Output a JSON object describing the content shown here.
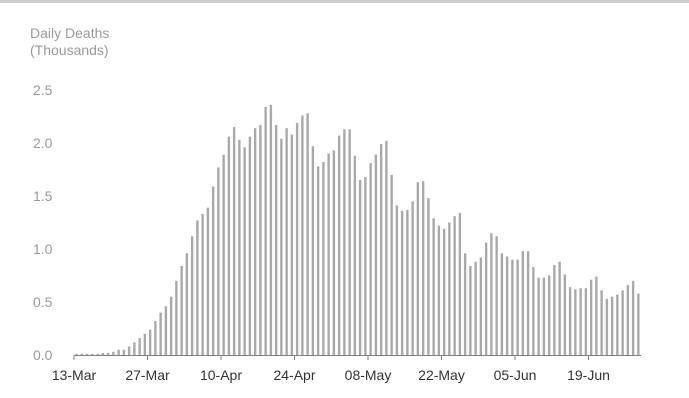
{
  "chart_data": {
    "type": "bar",
    "title": "",
    "ylabel_line1": "Daily Deaths",
    "ylabel_line2": "(Thousands)",
    "xlabel": "",
    "ylim": [
      0,
      2.5
    ],
    "yticks": [
      "0.0",
      "0.5",
      "1.0",
      "1.5",
      "2.0",
      "2.5"
    ],
    "xticks": [
      "13-Mar",
      "27-Mar",
      "10-Apr",
      "24-Apr",
      "08-May",
      "22-May",
      "05-Jun",
      "19-Jun"
    ],
    "start_label": "13-Mar",
    "bar_color": "#a9a9a9",
    "axis_color": "#808080",
    "values": [
      0.01,
      0.01,
      0.01,
      0.01,
      0.01,
      0.02,
      0.02,
      0.03,
      0.05,
      0.05,
      0.08,
      0.12,
      0.16,
      0.2,
      0.24,
      0.32,
      0.4,
      0.46,
      0.55,
      0.7,
      0.84,
      0.96,
      1.12,
      1.27,
      1.33,
      1.39,
      1.59,
      1.77,
      1.89,
      2.06,
      2.15,
      2.03,
      1.96,
      2.06,
      2.14,
      2.17,
      2.34,
      2.36,
      2.17,
      2.04,
      2.14,
      2.08,
      2.19,
      2.26,
      2.28,
      1.97,
      1.78,
      1.82,
      1.9,
      1.93,
      2.07,
      2.13,
      2.13,
      1.88,
      1.65,
      1.68,
      1.81,
      1.89,
      1.99,
      2.02,
      1.7,
      1.41,
      1.36,
      1.37,
      1.45,
      1.63,
      1.64,
      1.48,
      1.29,
      1.22,
      1.19,
      1.25,
      1.31,
      1.34,
      0.96,
      0.84,
      0.88,
      0.92,
      1.06,
      1.15,
      1.12,
      0.96,
      0.93,
      0.9,
      0.9,
      0.98,
      0.98,
      0.83,
      0.73,
      0.73,
      0.75,
      0.85,
      0.88,
      0.76,
      0.64,
      0.62,
      0.63,
      0.63,
      0.71,
      0.74,
      0.61,
      0.53,
      0.55,
      0.57,
      0.61,
      0.66,
      0.7,
      0.58
    ]
  }
}
